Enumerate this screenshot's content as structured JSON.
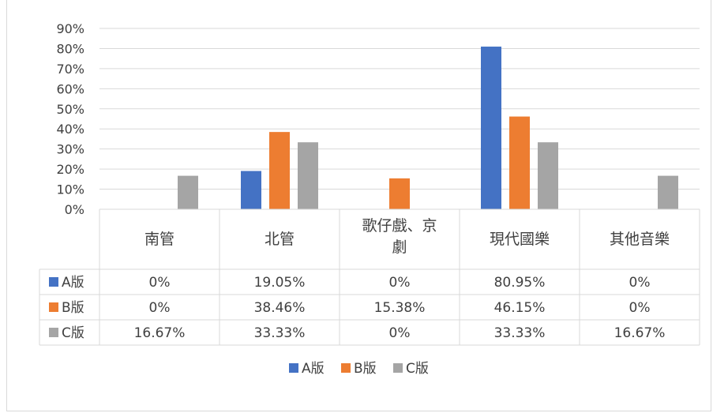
{
  "chart_data": {
    "type": "bar",
    "categories": [
      "南管",
      "北管",
      "歌仔戲、京劇",
      "現代國樂",
      "其他音樂"
    ],
    "category_lines": [
      [
        "南管"
      ],
      [
        "北管"
      ],
      [
        "歌仔戲、京",
        "劇"
      ],
      [
        "現代國樂"
      ],
      [
        "其他音樂"
      ]
    ],
    "series": [
      {
        "name": "A版",
        "values": [
          0,
          19.05,
          0,
          80.95,
          0
        ],
        "labels": [
          "0%",
          "19.05%",
          "0%",
          "80.95%",
          "0%"
        ],
        "color": "#4472c4"
      },
      {
        "name": "B版",
        "values": [
          0,
          38.46,
          15.38,
          46.15,
          0
        ],
        "labels": [
          "0%",
          "38.46%",
          "15.38%",
          "46.15%",
          "0%"
        ],
        "color": "#ed7d31"
      },
      {
        "name": "C版",
        "values": [
          16.67,
          33.33,
          0,
          33.33,
          16.67
        ],
        "labels": [
          "16.67%",
          "33.33%",
          "0%",
          "33.33%",
          "16.67%"
        ],
        "color": "#a5a5a5"
      }
    ],
    "ylim": [
      0,
      90
    ],
    "yticks": [
      "0%",
      "10%",
      "20%",
      "30%",
      "40%",
      "50%",
      "60%",
      "70%",
      "80%",
      "90%"
    ],
    "grid": true,
    "legend": "bottom",
    "data_table": true
  }
}
